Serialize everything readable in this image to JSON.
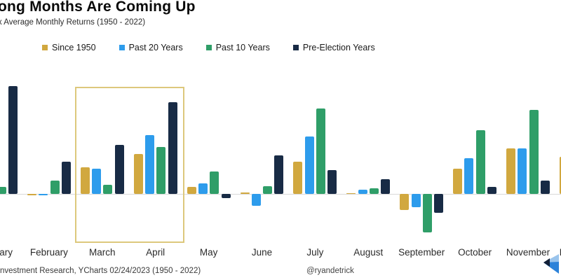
{
  "title": "ong Months Are Coming Up",
  "subtitle": "x Average Monthly Returns (1950 - 2022)",
  "legend": [
    {
      "label": "Since 1950",
      "color": "#d1a83f"
    },
    {
      "label": "Past 20 Years",
      "color": "#2d9cec"
    },
    {
      "label": "Past 10 Years",
      "color": "#2f9e68"
    },
    {
      "label": "Pre-Election Years",
      "color": "#182b45"
    }
  ],
  "chart_data": {
    "type": "bar",
    "title": "ong Months Are Coming Up",
    "subtitle": "x Average Monthly Returns (1950 - 2022)",
    "categories": [
      "January",
      "February",
      "March",
      "April",
      "May",
      "June",
      "July",
      "August",
      "September",
      "October",
      "November",
      "December"
    ],
    "series": [
      {
        "name": "Since 1950",
        "color": "#d1a83f",
        "values": [
          null,
          -0.05,
          1.0,
          1.5,
          0.25,
          0.05,
          1.2,
          0.02,
          -0.6,
          0.95,
          1.7,
          1.4
        ]
      },
      {
        "name": "Past 20 Years",
        "color": "#2d9cec",
        "values": [
          null,
          -0.05,
          0.95,
          2.2,
          0.4,
          -0.45,
          2.15,
          0.15,
          -0.5,
          1.35,
          1.7,
          null
        ]
      },
      {
        "name": "Past 10 Years",
        "color": "#2f9e68",
        "values": [
          0.25,
          0.5,
          0.35,
          1.75,
          0.85,
          0.3,
          3.2,
          0.2,
          -1.45,
          2.4,
          3.15,
          null
        ]
      },
      {
        "name": "Pre-Election Years",
        "color": "#182b45",
        "values": [
          4.05,
          1.2,
          1.85,
          3.45,
          -0.15,
          1.45,
          0.9,
          0.55,
          -0.7,
          0.25,
          0.5,
          null
        ]
      }
    ],
    "unit": "percent",
    "y_axis_visible": false,
    "grid": false,
    "legend_position": "top",
    "zero_baseline": true,
    "highlighted_months": [
      "March",
      "April"
    ],
    "note": "values estimated from bar heights; axis is cropped out of the screenshot"
  },
  "highlight": {
    "months_label": "March–April highlight box",
    "border_color": "#ddc87c"
  },
  "footer": {
    "source": "nvestment Research, YCharts 02/24/2023 (1950 - 2022)",
    "handle": "@ryandetrick"
  },
  "logo": {
    "name": "blue-chevron-logo",
    "colors": [
      "#9ac4ec",
      "#2c82d9",
      "#132036"
    ]
  }
}
